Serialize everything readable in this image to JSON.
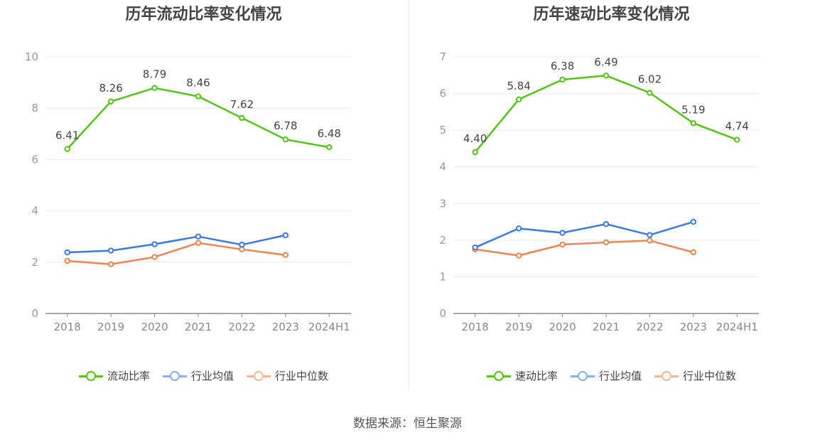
{
  "footer": {
    "source": "数据来源：恒生聚源"
  },
  "chart_data": [
    {
      "type": "line",
      "title": "历年流动比率变化情况",
      "categories": [
        "2018",
        "2019",
        "2020",
        "2021",
        "2022",
        "2023",
        "2024H1"
      ],
      "ylim": [
        0,
        10
      ],
      "yticks": [
        0,
        2,
        4,
        6,
        8,
        10
      ],
      "grid": true,
      "legend_position": "bottom",
      "series": [
        {
          "name": "流动比率",
          "color": "#52c41a",
          "values": [
            6.41,
            8.26,
            8.79,
            8.46,
            7.62,
            6.78,
            6.48
          ],
          "labels": [
            "6.41",
            "8.26",
            "8.79",
            "8.46",
            "7.62",
            "6.78",
            "6.48"
          ]
        },
        {
          "name": "行业均值",
          "color": "#3b78e7",
          "values": [
            2.38,
            2.45,
            2.7,
            3.0,
            2.68,
            3.05,
            null
          ]
        },
        {
          "name": "行业中位数",
          "color": "#f08451",
          "values": [
            2.05,
            1.92,
            2.2,
            2.75,
            2.5,
            2.28,
            null
          ]
        }
      ]
    },
    {
      "type": "line",
      "title": "历年速动比率变化情况",
      "categories": [
        "2018",
        "2019",
        "2020",
        "2021",
        "2022",
        "2023",
        "2024H1"
      ],
      "ylim": [
        0,
        7
      ],
      "yticks": [
        0,
        1,
        2,
        3,
        4,
        5,
        6,
        7
      ],
      "grid": true,
      "legend_position": "bottom",
      "series": [
        {
          "name": "速动比率",
          "color": "#52c41a",
          "values": [
            4.4,
            5.84,
            6.38,
            6.49,
            6.02,
            5.19,
            4.74
          ],
          "labels": [
            "4.40",
            "5.84",
            "6.38",
            "6.49",
            "6.02",
            "5.19",
            "4.74"
          ]
        },
        {
          "name": "行业均值",
          "color": "#3b78e7",
          "values": [
            1.8,
            2.32,
            2.2,
            2.44,
            2.14,
            2.5,
            null
          ]
        },
        {
          "name": "行业中位数",
          "color": "#f08451",
          "values": [
            1.75,
            1.58,
            1.88,
            1.94,
            1.99,
            1.67,
            null
          ]
        }
      ]
    }
  ]
}
